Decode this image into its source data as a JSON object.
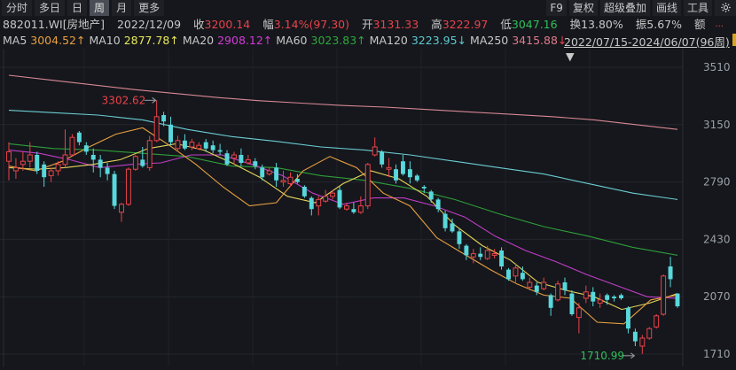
{
  "toolbar": {
    "tabs": [
      {
        "label": "分时",
        "active": false
      },
      {
        "label": "多日",
        "active": false
      },
      {
        "label": "日",
        "active": false
      },
      {
        "label": "周",
        "active": true
      },
      {
        "label": "月",
        "active": false
      },
      {
        "label": "更多",
        "active": false
      }
    ],
    "tools": [
      "F9",
      "复权",
      "超级叠加",
      "画线",
      "工具"
    ],
    "settings_icon": "gear-icon"
  },
  "quote": {
    "code": "882011.WI[房地产]",
    "date": "2022/12/09",
    "close_label": "收",
    "close": "3200.14",
    "change_label": "幅",
    "change": "3.14%(97.30)",
    "open_label": "开",
    "open": "3131.33",
    "high_label": "高",
    "high": "3222.97",
    "low_label": "低",
    "low": "3047.16",
    "turnover_label": "换",
    "turnover": "13.80%",
    "amplitude_label": "振",
    "amplitude": "5.67%",
    "amount_label": "额",
    "amount": "..."
  },
  "ma": [
    {
      "label": "MA5",
      "value": "3004.52",
      "arrow": "↑",
      "color": "#e8a040"
    },
    {
      "label": "MA10",
      "value": "2877.78",
      "arrow": "↑",
      "color": "#e8e85a"
    },
    {
      "label": "MA20",
      "value": "2908.12",
      "arrow": "↑",
      "color": "#d43ad6"
    },
    {
      "label": "MA60",
      "value": "3023.83",
      "arrow": "↑",
      "color": "#2fa83a"
    },
    {
      "label": "MA120",
      "value": "3223.95",
      "arrow": "↓",
      "color": "#5ccad0"
    },
    {
      "label": "MA250",
      "value": "3415.88",
      "arrow": "↓",
      "color": "#e07a8a"
    }
  ],
  "range": {
    "text": "2022/07/15-2024/06/07(96周)",
    "dropdown_icon": "▼"
  },
  "chart_data": {
    "type": "candlestick",
    "title": "882011.WI 房地产 周K",
    "period": "2022/07/15-2024/06/07 (96 weeks)",
    "ylim": [
      1710,
      3510
    ],
    "yticks": [
      3510,
      3150,
      2790,
      2430,
      2070,
      1710
    ],
    "annotations": [
      {
        "text": "3302.62",
        "type": "max",
        "index": 21,
        "value": 3302.62,
        "color": "#e8434a"
      },
      {
        "text": "1710.99",
        "type": "min",
        "index": 89,
        "value": 1710.99,
        "color": "#2fc05a"
      }
    ],
    "up_color": "#e8434a",
    "down_color": "#58d8dc",
    "candles": [
      [
        2920,
        2980,
        2800,
        3040
      ],
      [
        2860,
        2880,
        2810,
        2940
      ],
      [
        2900,
        2920,
        2860,
        2980
      ],
      [
        2920,
        2960,
        2880,
        3040
      ],
      [
        2960,
        2860,
        2840,
        2980
      ],
      [
        2900,
        2820,
        2760,
        2920
      ],
      [
        2830,
        2860,
        2790,
        2880
      ],
      [
        2860,
        2900,
        2830,
        2920
      ],
      [
        2900,
        2960,
        2880,
        3120
      ],
      [
        2960,
        3070,
        2950,
        3090
      ],
      [
        3100,
        3040,
        3020,
        3110
      ],
      [
        3020,
        2980,
        2960,
        3040
      ],
      [
        2960,
        2930,
        2850,
        3000
      ],
      [
        2930,
        2880,
        2820,
        2960
      ],
      [
        2880,
        2840,
        2800,
        2910
      ],
      [
        2840,
        2640,
        2620,
        2860
      ],
      [
        2600,
        2650,
        2540,
        2660
      ],
      [
        2650,
        2870,
        2640,
        2880
      ],
      [
        2870,
        2950,
        2860,
        2960
      ],
      [
        2930,
        2890,
        2880,
        3010
      ],
      [
        2880,
        3050,
        2860,
        3080
      ],
      [
        3050,
        3200,
        3040,
        3302.62
      ],
      [
        3210,
        3170,
        3140,
        3230
      ],
      [
        3150,
        3040,
        3020,
        3200
      ],
      [
        3000,
        3050,
        2980,
        3080
      ],
      [
        3050,
        3000,
        2990,
        3090
      ],
      [
        3010,
        3040,
        2990,
        3060
      ],
      [
        3000,
        3020,
        2990,
        3040
      ],
      [
        3040,
        3000,
        2980,
        3060
      ],
      [
        3020,
        2990,
        2970,
        3050
      ],
      [
        2990,
        2980,
        2960,
        3030
      ],
      [
        2970,
        2900,
        2890,
        2990
      ],
      [
        2940,
        2960,
        2900,
        2980
      ],
      [
        2960,
        2910,
        2890,
        3000
      ],
      [
        2910,
        2930,
        2900,
        2960
      ],
      [
        2920,
        2890,
        2870,
        2940
      ],
      [
        2880,
        2820,
        2800,
        2900
      ],
      [
        2840,
        2860,
        2830,
        2880
      ],
      [
        2880,
        2800,
        2760,
        2910
      ],
      [
        2790,
        2800,
        2760,
        2860
      ],
      [
        2780,
        2820,
        2760,
        2850
      ],
      [
        2810,
        2790,
        2780,
        2840
      ],
      [
        2760,
        2700,
        2690,
        2770
      ],
      [
        2690,
        2620,
        2580,
        2700
      ],
      [
        2640,
        2680,
        2580,
        2700
      ],
      [
        2670,
        2700,
        2660,
        2740
      ],
      [
        2700,
        2720,
        2680,
        2740
      ],
      [
        2740,
        2630,
        2620,
        2760
      ],
      [
        2620,
        2640,
        2610,
        2660
      ],
      [
        2620,
        2600,
        2590,
        2660
      ],
      [
        2600,
        2640,
        2590,
        2700
      ],
      [
        2640,
        2900,
        2620,
        2910
      ],
      [
        2960,
        3010,
        2950,
        3070
      ],
      [
        2980,
        2900,
        2880,
        2990
      ],
      [
        2870,
        2880,
        2820,
        2940
      ],
      [
        2870,
        2800,
        2780,
        2900
      ],
      [
        2920,
        2840,
        2830,
        2960
      ],
      [
        2870,
        2820,
        2780,
        2920
      ],
      [
        2830,
        2800,
        2790,
        2840
      ],
      [
        2760,
        2750,
        2720,
        2770
      ],
      [
        2730,
        2680,
        2660,
        2740
      ],
      [
        2680,
        2620,
        2600,
        2690
      ],
      [
        2590,
        2500,
        2480,
        2610
      ],
      [
        2530,
        2480,
        2470,
        2560
      ],
      [
        2480,
        2400,
        2370,
        2500
      ],
      [
        2390,
        2330,
        2300,
        2400
      ],
      [
        2320,
        2340,
        2280,
        2370
      ],
      [
        2340,
        2320,
        2300,
        2380
      ],
      [
        2310,
        2360,
        2300,
        2390
      ],
      [
        2330,
        2340,
        2310,
        2370
      ],
      [
        2360,
        2260,
        2240,
        2380
      ],
      [
        2240,
        2180,
        2170,
        2250
      ],
      [
        2200,
        2250,
        2160,
        2280
      ],
      [
        2220,
        2180,
        2170,
        2260
      ],
      [
        2130,
        2160,
        2110,
        2190
      ],
      [
        2140,
        2100,
        2080,
        2160
      ],
      [
        2120,
        2160,
        2110,
        2190
      ],
      [
        2080,
        2000,
        1950,
        2090
      ],
      [
        2050,
        2150,
        2040,
        2170
      ],
      [
        2160,
        2110,
        2080,
        2190
      ],
      [
        2090,
        1960,
        1950,
        2110
      ],
      [
        1940,
        2000,
        1840,
        2030
      ],
      [
        2060,
        2100,
        2030,
        2140
      ],
      [
        2100,
        2040,
        2010,
        2130
      ],
      [
        2030,
        2050,
        2000,
        2090
      ],
      [
        2080,
        2050,
        2020,
        2090
      ],
      [
        2070,
        2060,
        2040,
        2080
      ],
      [
        2080,
        2060,
        2050,
        2090
      ],
      [
        2000,
        1870,
        1840,
        2010
      ],
      [
        1850,
        1790,
        1760,
        1870
      ],
      [
        1760,
        1810,
        1710.99,
        1830
      ],
      [
        1810,
        1870,
        1800,
        1880
      ],
      [
        1880,
        1950,
        1870,
        1960
      ],
      [
        1960,
        2200,
        1950,
        2210
      ],
      [
        2260,
        2180,
        2130,
        2320
      ],
      [
        2090,
        2010,
        2000,
        2080
      ]
    ],
    "ma_lines": {
      "MA250": [
        3460,
        3430,
        3400,
        3370,
        3345,
        3320,
        3300,
        3285,
        3270,
        3260,
        3245,
        3230,
        3215,
        3200,
        3180,
        3150,
        3120
      ],
      "MA120": [
        3240,
        3225,
        3210,
        3180,
        3120,
        3075,
        3045,
        3010,
        2990,
        2960,
        2920,
        2880,
        2840,
        2780,
        2720,
        2680
      ],
      "MA60": [
        3030,
        3000,
        2990,
        2970,
        2950,
        2890,
        2880,
        2830,
        2800,
        2750,
        2680,
        2590,
        2510,
        2450,
        2380,
        2330
      ],
      "MA20": [
        2990,
        2970,
        2930,
        2880,
        2900,
        2910,
        2960,
        2960,
        2900,
        2830,
        2720,
        2650,
        2690,
        2690,
        2640,
        2570,
        2450,
        2360,
        2290,
        2210,
        2140,
        2070,
        2060
      ],
      "MA10": [
        2880,
        2870,
        2880,
        2900,
        2930,
        3000,
        3030,
        2990,
        2910,
        2820,
        2700,
        2660,
        2780,
        2860,
        2810,
        2700,
        2520,
        2390,
        2300,
        2160,
        2110,
        2070,
        1990,
        2030,
        2090
      ],
      "MA5": [
        2890,
        2860,
        2920,
        3010,
        3090,
        3130,
        3020,
        2900,
        2760,
        2640,
        2660,
        2860,
        2950,
        2880,
        2720,
        2640,
        2440,
        2340,
        2240,
        2150,
        2080,
        2060,
        1910,
        1900,
        2050,
        2080
      ]
    }
  },
  "y_axis": [
    "3510",
    "3150",
    "2790",
    "2430",
    "2070",
    "1710"
  ]
}
